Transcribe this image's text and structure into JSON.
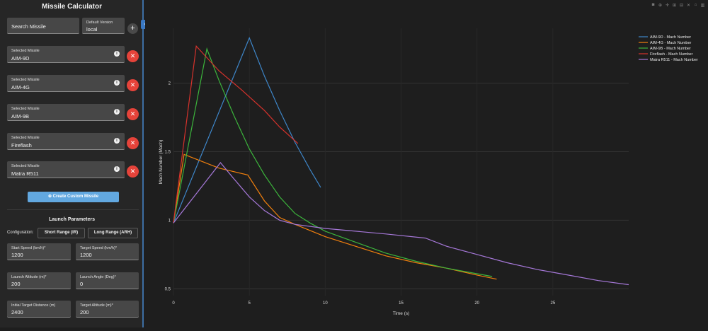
{
  "sidebar": {
    "title": "Missile Calculator",
    "search": {
      "value": "Search Missile"
    },
    "version": {
      "label": "Default Version",
      "value": "local"
    },
    "add_icon": "+",
    "collapse_icon": "‹",
    "missiles": [
      {
        "label": "Selected Missile",
        "value": "AIM-9D"
      },
      {
        "label": "Selected Missile",
        "value": "AIM-4G"
      },
      {
        "label": "Selected Missile",
        "value": "AIM-9B"
      },
      {
        "label": "Selected Missile",
        "value": "Fireflash"
      },
      {
        "label": "Selected Missile",
        "value": "Matra R511"
      }
    ],
    "create_button": "Create Custom Missile",
    "launch_title": "Launch Parameters",
    "config_label": "Configuration:",
    "config_short": "Short Range (IR)",
    "config_long": "Long Range (ARH)",
    "params": [
      {
        "label": "Start Speed (km/h)*",
        "value": "1200"
      },
      {
        "label": "Target Speed (km/h)*",
        "value": "1200"
      },
      {
        "label": "Launch Altitude (m)*",
        "value": "200"
      },
      {
        "label": "Launch Angle (Deg)*",
        "value": "0"
      },
      {
        "label": "Initial Target Distance (m)",
        "value": "2400"
      },
      {
        "label": "Target Altitude (m)*",
        "value": "200"
      }
    ]
  },
  "modebar": [
    "camera-icon",
    "zoom-icon",
    "pan-icon",
    "zoom-in-icon",
    "zoom-out-icon",
    "autoscale-icon",
    "reset-icon",
    "plotly-logo"
  ],
  "colors": {
    "accent": "#62a8e0",
    "remove": "#e5433a"
  },
  "chart_data": {
    "type": "line",
    "xlabel": "Time (s)",
    "ylabel": "Mach Number (Mach)",
    "xlim": [
      0,
      30
    ],
    "ylim": [
      0.45,
      2.4
    ],
    "xticks": [
      "0",
      "5",
      "10",
      "15",
      "20",
      "25"
    ],
    "xtick_values": [
      0,
      5,
      10,
      15,
      20,
      25
    ],
    "yticks": [
      "0.5",
      "1",
      "1.5",
      "2"
    ],
    "ytick_values": [
      0.5,
      1,
      1.5,
      2
    ],
    "legend_position": "top-right",
    "series": [
      {
        "name": "AIM-9D - Mach Number",
        "color": "#3e86c9",
        "x": [
          0,
          5,
          6,
          7,
          8,
          9,
          9.7
        ],
        "y": [
          0.98,
          2.33,
          2.05,
          1.8,
          1.57,
          1.37,
          1.24
        ]
      },
      {
        "name": "AIM-4G - Mach Number",
        "color": "#f2800d",
        "x": [
          0,
          0.7,
          3,
          4.9,
          6,
          7,
          8,
          10,
          12,
          14,
          16,
          18,
          20,
          21.3
        ],
        "y": [
          0.98,
          1.48,
          1.38,
          1.33,
          1.14,
          1.02,
          0.97,
          0.88,
          0.81,
          0.74,
          0.69,
          0.65,
          0.6,
          0.57
        ]
      },
      {
        "name": "AIM-9B - Mach Number",
        "color": "#3cb53c",
        "x": [
          0,
          2.2,
          3,
          4,
          5,
          6,
          7,
          8,
          9,
          10,
          12,
          14,
          16,
          18,
          20,
          21
        ],
        "y": [
          0.98,
          2.25,
          2.02,
          1.76,
          1.52,
          1.33,
          1.17,
          1.05,
          0.98,
          0.92,
          0.84,
          0.76,
          0.7,
          0.65,
          0.61,
          0.59
        ]
      },
      {
        "name": "Fireflash - Mach Number",
        "color": "#d6322c",
        "x": [
          0,
          1.5,
          3,
          4.5,
          6,
          7,
          8.2
        ],
        "y": [
          0.98,
          2.27,
          2.09,
          1.95,
          1.8,
          1.68,
          1.56
        ]
      },
      {
        "name": "Matra R511 - Mach Number",
        "color": "#a678d9",
        "x": [
          0,
          3.1,
          4,
          5,
          6,
          7,
          8,
          10,
          12,
          14,
          16.6,
          18,
          20,
          22,
          24,
          26,
          28,
          30
        ],
        "y": [
          0.98,
          1.42,
          1.3,
          1.17,
          1.07,
          1.0,
          0.97,
          0.94,
          0.92,
          0.9,
          0.87,
          0.81,
          0.75,
          0.69,
          0.64,
          0.6,
          0.56,
          0.53
        ]
      }
    ]
  }
}
